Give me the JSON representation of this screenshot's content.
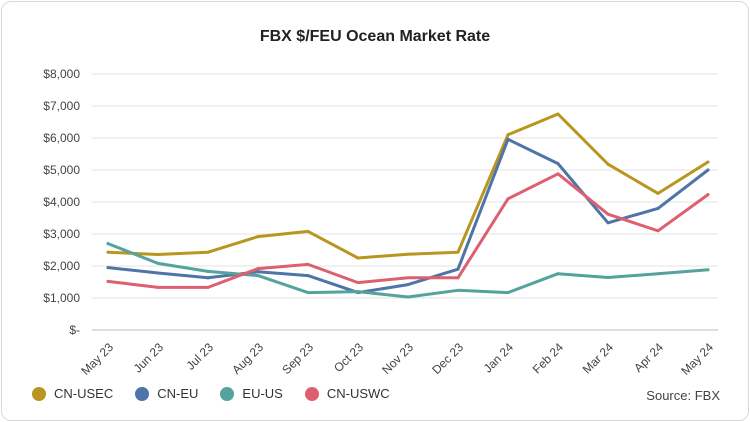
{
  "chart_data": {
    "type": "line",
    "title": "FBX $/FEU Ocean Market Rate",
    "categories": [
      "May 23",
      "Jun 23",
      "Jul 23",
      "Aug 23",
      "Sep 23",
      "Oct 23",
      "Nov 23",
      "Dec 23",
      "Jan 24",
      "Feb 24",
      "Mar 24",
      "Apr 24",
      "May 24"
    ],
    "ylim": [
      0,
      8000
    ],
    "yticks": [
      "$-",
      "$1,000",
      "$2,000",
      "$3,000",
      "$4,000",
      "$5,000",
      "$6,000",
      "$7,000",
      "$8,000"
    ],
    "grid": true,
    "legend_position": "bottom-left",
    "series": [
      {
        "name": "CN-USEC",
        "color": "#b8961f",
        "values": [
          2430,
          2360,
          2430,
          2920,
          3080,
          2250,
          2370,
          2430,
          6100,
          6750,
          5180,
          4270,
          5250
        ]
      },
      {
        "name": "CN-EU",
        "color": "#4e74a8",
        "values": [
          1950,
          1780,
          1630,
          1820,
          1700,
          1170,
          1420,
          1900,
          5960,
          5200,
          3350,
          3800,
          5000
        ]
      },
      {
        "name": "EU-US",
        "color": "#54a39c",
        "values": [
          2700,
          2080,
          1830,
          1700,
          1170,
          1200,
          1030,
          1240,
          1170,
          1760,
          1640,
          1760,
          1880
        ]
      },
      {
        "name": "CN-USWC",
        "color": "#de6070",
        "values": [
          1520,
          1330,
          1330,
          1920,
          2050,
          1480,
          1630,
          1630,
          4100,
          4880,
          3620,
          3100,
          4230
        ]
      }
    ]
  },
  "source_label": "Source: FBX"
}
